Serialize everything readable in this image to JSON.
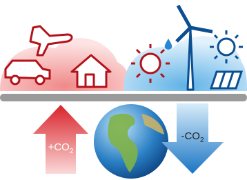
{
  "left_arrow": {
    "text": "+CO",
    "subscript": "2"
  },
  "right_arrow": {
    "text": "-CO",
    "subscript": "2"
  }
}
